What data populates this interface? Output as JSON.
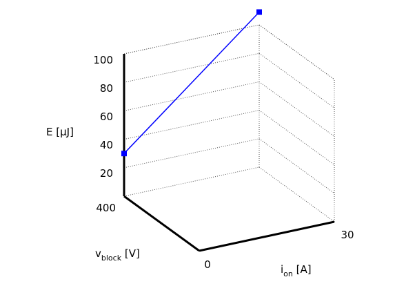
{
  "chart_data": {
    "type": "line",
    "title": "",
    "zlabel": "E [µJ]",
    "xlabel": {
      "main": "i",
      "sub": "on",
      "unit": " [A]"
    },
    "ylabel": {
      "main": "v",
      "sub": "block",
      "unit": " [V]"
    },
    "xlim": [
      0,
      30
    ],
    "ylim": [
      0,
      400
    ],
    "zlim": [
      0,
      100
    ],
    "x_ticks": [
      "30"
    ],
    "y_ticks": [
      "0",
      "400"
    ],
    "z_ticks": [
      "20",
      "40",
      "60",
      "80",
      "100"
    ],
    "grid": true,
    "series": [
      {
        "color": "#0000ff",
        "points": [
          {
            "x": 0,
            "y": 400,
            "z": 30
          },
          {
            "x": 30,
            "y": 400,
            "z": 109
          }
        ]
      }
    ]
  }
}
